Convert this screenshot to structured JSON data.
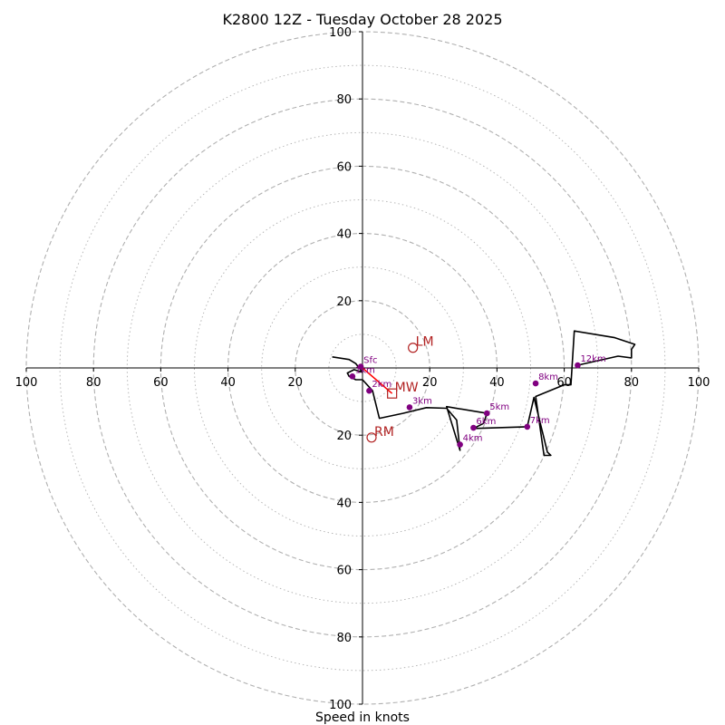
{
  "chart_data": {
    "type": "hodograph",
    "title": "K2800 12Z - Tuesday October 28 2025",
    "xlabel": "Speed in knots",
    "units": "knots",
    "xlim": [
      -100,
      100
    ],
    "ylim": [
      -100,
      100
    ],
    "tick_labels": {
      "x_left": [
        "100",
        "80",
        "60",
        "40",
        "20"
      ],
      "x_right": [
        "20",
        "40",
        "60",
        "80",
        "100"
      ],
      "y_top": [
        "20",
        "40",
        "60",
        "80",
        "100"
      ],
      "y_bottom": [
        "20",
        "40",
        "60",
        "80",
        "100"
      ]
    },
    "rings_dashed": [
      20,
      40,
      60,
      80,
      100
    ],
    "rings_dotted": [
      10,
      30,
      50,
      70,
      90
    ],
    "colors": {
      "ring": "#b0b0b0",
      "axis": "#000000",
      "trace": "#000000",
      "height_marker": "#800080",
      "storm_motion": "#b22222",
      "mean_wind_vector": "#ff0000"
    },
    "trace": {
      "u": [
        -9,
        -4,
        -2,
        0,
        -2.5,
        -4.5,
        -4,
        -2,
        0,
        3,
        5,
        12,
        19,
        25,
        28,
        29,
        25,
        37,
        36,
        33,
        49,
        51,
        55,
        56,
        54,
        51.5,
        60,
        62,
        63,
        75,
        81,
        80,
        80,
        76,
        64
      ],
      "v": [
        3.3,
        2.5,
        1.3,
        -1.3,
        -0.5,
        -1.5,
        -2.5,
        -3.5,
        -3.5,
        -6.8,
        -15,
        -13.5,
        -11.8,
        -12,
        -15.5,
        -24.5,
        -11.5,
        -13.5,
        -16.5,
        -18,
        -17.5,
        -8.8,
        -25,
        -26,
        -26,
        -8.5,
        -5,
        -5,
        11,
        9,
        7,
        5.5,
        3,
        3.5,
        0.8
      ]
    },
    "height_markers": [
      {
        "label": "Sfc",
        "u": -0.5,
        "v": 0.4
      },
      {
        "label": "1km",
        "u": -3,
        "v": -2.5
      },
      {
        "label": "2km",
        "u": 2,
        "v": -6.8
      },
      {
        "label": "3km",
        "u": 14,
        "v": -11.7
      },
      {
        "label": "4km",
        "u": 29,
        "v": -22.8
      },
      {
        "label": "5km",
        "u": 37,
        "v": -13.5
      },
      {
        "label": "6km",
        "u": 33,
        "v": -17.8
      },
      {
        "label": "7km",
        "u": 49,
        "v": -17.5
      },
      {
        "label": "8km",
        "u": 51.5,
        "v": -4.6
      },
      {
        "label": "12km",
        "u": 64,
        "v": 0.8
      }
    ],
    "storm_motion": [
      {
        "label": "LM",
        "u": 15,
        "v": 6,
        "marker": "circle"
      },
      {
        "label": "RM",
        "u": 2.7,
        "v": -20.7,
        "marker": "circle"
      },
      {
        "label": "MW",
        "u": 8.8,
        "v": -7.6,
        "marker": "square"
      }
    ],
    "mean_wind_vector": {
      "from": [
        0,
        0
      ],
      "to": [
        8.8,
        -7.6
      ]
    }
  }
}
